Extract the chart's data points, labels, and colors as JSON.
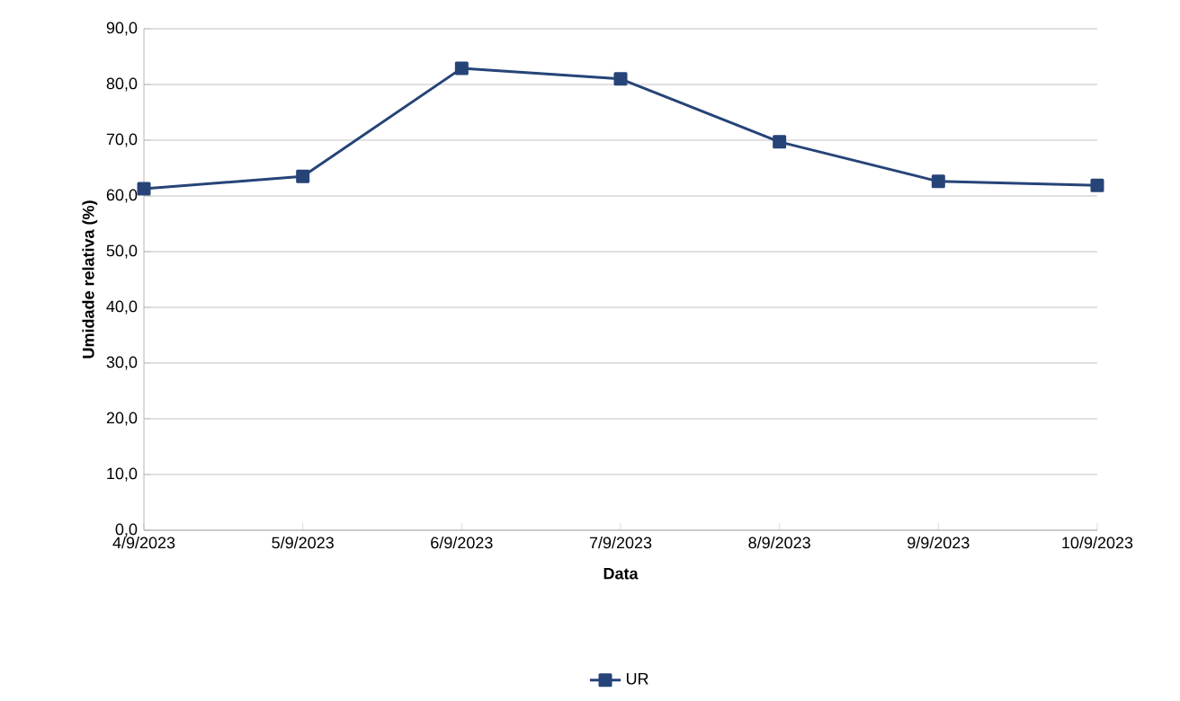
{
  "chart_data": {
    "type": "line",
    "xlabel": "Data",
    "ylabel": "Umidade relativa (%)",
    "categories": [
      "4/9/2023",
      "5/9/2023",
      "6/9/2023",
      "7/9/2023",
      "8/9/2023",
      "9/9/2023",
      "10/9/2023"
    ],
    "series": [
      {
        "name": "UR",
        "color": "#264478",
        "values": [
          61.3,
          63.5,
          82.9,
          81.0,
          69.7,
          62.6,
          61.9
        ]
      }
    ],
    "ylim": [
      0,
      90
    ],
    "yticks": [
      {
        "value": 0,
        "label": "0,0"
      },
      {
        "value": 10,
        "label": "10,0"
      },
      {
        "value": 20,
        "label": "20,0"
      },
      {
        "value": 30,
        "label": "30,0"
      },
      {
        "value": 40,
        "label": "40,0"
      },
      {
        "value": 50,
        "label": "50,0"
      },
      {
        "value": 60,
        "label": "60,0"
      },
      {
        "value": 70,
        "label": "70,0"
      },
      {
        "value": 80,
        "label": "80,0"
      },
      {
        "value": 90,
        "label": "90,0"
      }
    ],
    "grid": "y",
    "legend": "bottom",
    "marker": "square",
    "line_style": "solid"
  }
}
